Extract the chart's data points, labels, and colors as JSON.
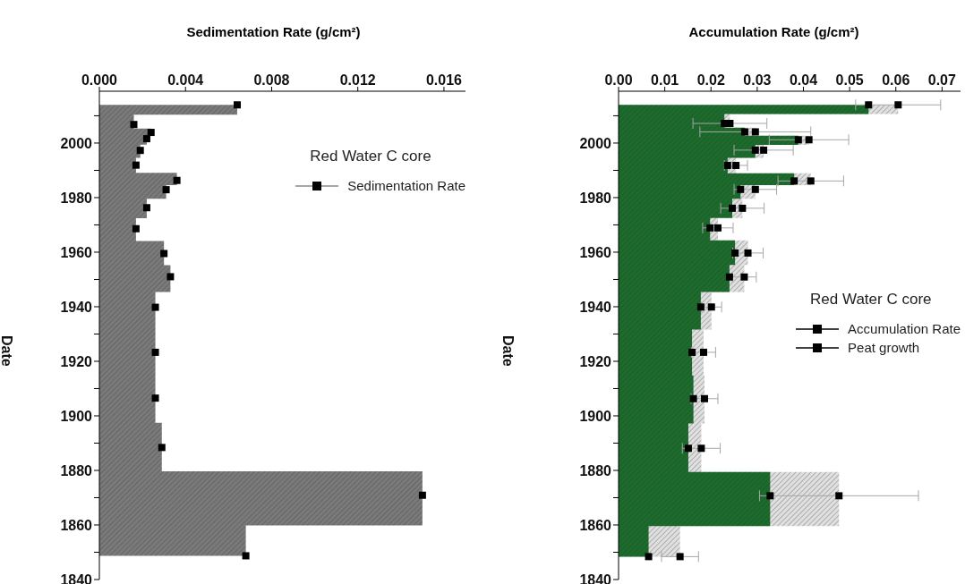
{
  "chart_data": [
    {
      "type": "area",
      "orientation": "horizontal",
      "title": "Sedimentation Rate (g/cm²)",
      "ylabel": "Date",
      "legend_title": "Red Water C core",
      "legend": "top right",
      "marker": "square",
      "x": [
        2014,
        2006.8,
        2003.9,
        2001.6,
        1997.3,
        1991.9,
        1986.3,
        1982.9,
        1976.3,
        1968.6,
        1959.5,
        1951,
        1939.8,
        1923.3,
        1906.5,
        1888.4,
        1870.9,
        1848.7
      ],
      "series": [
        {
          "name": "Sedimentation Rate",
          "color": "#7a7a7a",
          "values": [
            0.0064,
            0.0016,
            0.0024,
            0.0022,
            0.0019,
            0.0017,
            0.0036,
            0.0031,
            0.0022,
            0.0017,
            0.003,
            0.0033,
            0.0026,
            0.0026,
            0.0026,
            0.0029,
            0.015,
            0.0068
          ]
        }
      ],
      "xlim": [
        0,
        0.017
      ],
      "xticks": [
        {
          "value": 0,
          "label": "0.000"
        },
        {
          "value": 0.004,
          "label": "0.004"
        },
        {
          "value": 0.008,
          "label": "0.008"
        },
        {
          "value": 0.012,
          "label": "0.012"
        },
        {
          "value": 0.016,
          "label": "0.016"
        }
      ],
      "ylim": [
        1840,
        2019
      ],
      "yticks": [
        1840,
        {
          "value": 1850,
          "label": null
        },
        1860,
        {
          "value": 1870,
          "label": null
        },
        1880,
        {
          "value": 1890,
          "label": null
        },
        1900,
        {
          "value": 1910,
          "label": null
        },
        1920,
        {
          "value": 1930,
          "label": null
        },
        1940,
        {
          "value": 1950,
          "label": null
        },
        1960,
        {
          "value": 1970,
          "label": null
        },
        1980,
        {
          "value": 1990,
          "label": null
        },
        2000,
        {
          "value": 2010,
          "label": null
        }
      ]
    },
    {
      "type": "area",
      "orientation": "horizontal",
      "title": "Accumulation Rate (g/cm²)",
      "ylabel": "Date",
      "legend_title": "Red Water C core",
      "legend": "right",
      "marker": "square",
      "x": [
        2014,
        2007.2,
        2004.1,
        2001.2,
        1997.4,
        1991.8,
        1986.1,
        1983,
        1976.1,
        1968.9,
        1959.7,
        1950.9,
        1939.9,
        1923.3,
        1906.3,
        1888.1,
        1870.7,
        1848.4
      ],
      "series": [
        {
          "name": "Accumulation Rate",
          "color": "#a6a6a6",
          "values": [
            0.0605,
            0.0241,
            0.0296,
            0.0412,
            0.0314,
            0.0254,
            0.0416,
            0.0296,
            0.0268,
            0.0215,
            0.028,
            0.0272,
            0.0201,
            0.0184,
            0.0186,
            0.0179,
            0.0477,
            0.0133
          ],
          "errors": [
            0.0092,
            0.008,
            0.012,
            0.0086,
            0.0064,
            0.0025,
            0.0071,
            0.0046,
            0.0047,
            0.0033,
            0.0033,
            0.0026,
            0.0022,
            0.0026,
            0.0029,
            0.0041,
            0.0172,
            0.004
          ]
        },
        {
          "name": "Peat growth",
          "color": "#1e6b2e",
          "values": [
            0.0541,
            0.0229,
            0.0273,
            0.0389,
            0.0296,
            0.0236,
            0.038,
            0.0264,
            0.0246,
            0.0198,
            0.0252,
            0.024,
            0.0178,
            0.0159,
            0.0162,
            0.0151,
            0.0328,
            0.0065
          ]
        }
      ],
      "xlim": [
        0,
        0.074
      ],
      "xticks": [
        {
          "value": 0,
          "label": "0.00"
        },
        0.01,
        0.02,
        0.03,
        0.04,
        0.05,
        0.06,
        0.07
      ],
      "ylim": [
        1840,
        2019
      ],
      "yticks": [
        1840,
        {
          "value": 1850,
          "label": null
        },
        1860,
        {
          "value": 1870,
          "label": null
        },
        1880,
        {
          "value": 1890,
          "label": null
        },
        1900,
        {
          "value": 1910,
          "label": null
        },
        1920,
        {
          "value": 1930,
          "label": null
        },
        1940,
        {
          "value": 1950,
          "label": null
        },
        1960,
        {
          "value": 1970,
          "label": null
        },
        1980,
        {
          "value": 1990,
          "label": null
        },
        2000,
        {
          "value": 2010,
          "label": null
        }
      ]
    }
  ]
}
